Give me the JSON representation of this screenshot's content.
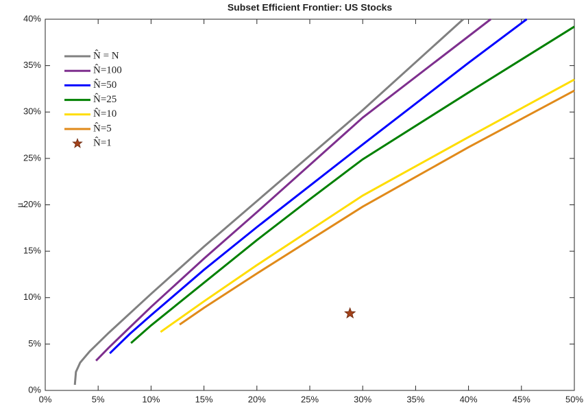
{
  "chart_data": {
    "type": "line",
    "title": "Subset Efficient Frontier:  US Stocks",
    "y_label": "μ",
    "xlim": [
      0,
      50
    ],
    "ylim": [
      0,
      40
    ],
    "xticks": [
      {
        "value": 0,
        "label": "0%"
      },
      {
        "value": 5,
        "label": "5%"
      },
      {
        "value": 10,
        "label": "10%"
      },
      {
        "value": 15,
        "label": "15%"
      },
      {
        "value": 20,
        "label": "20%"
      },
      {
        "value": 25,
        "label": "25%"
      },
      {
        "value": 30,
        "label": "30%"
      },
      {
        "value": 35,
        "label": "35%"
      },
      {
        "value": 40,
        "label": "40%"
      },
      {
        "value": 45,
        "label": "45%"
      },
      {
        "value": 50,
        "label": "50%"
      }
    ],
    "yticks": [
      {
        "value": 0,
        "label": "0%"
      },
      {
        "value": 5,
        "label": "5%"
      },
      {
        "value": 10,
        "label": "10%"
      },
      {
        "value": 15,
        "label": "15%"
      },
      {
        "value": 20,
        "label": "20%"
      },
      {
        "value": 25,
        "label": "25%"
      },
      {
        "value": 30,
        "label": "30%"
      },
      {
        "value": 35,
        "label": "35%"
      },
      {
        "value": 40,
        "label": "40%"
      }
    ],
    "grid": false,
    "legend": "upper-left",
    "series": [
      {
        "name": "N̂ = N",
        "color": "#808080",
        "x": [
          2.8,
          2.9,
          3.3,
          4.2,
          6,
          10,
          15,
          20,
          30,
          39.5
        ],
        "values": [
          0.6,
          2.0,
          3.0,
          4.2,
          6.2,
          10.4,
          15.5,
          20.4,
          30.2,
          40
        ]
      },
      {
        "name": "N̂=100",
        "color": "#7e2f8e",
        "x": [
          4.8,
          6,
          8,
          10,
          15,
          20,
          30,
          42.1
        ],
        "values": [
          3.2,
          4.6,
          6.8,
          9,
          14.2,
          19.2,
          29.4,
          40
        ]
      },
      {
        "name": "N̂=50",
        "color": "#0000ff",
        "x": [
          6.1,
          8,
          10,
          15,
          20,
          30,
          40,
          45.5
        ],
        "values": [
          4.0,
          6.1,
          8.1,
          13,
          17.6,
          26.5,
          35.3,
          40
        ]
      },
      {
        "name": "N̂=25",
        "color": "#008000",
        "x": [
          8.1,
          10,
          15,
          20,
          25,
          30,
          40,
          50
        ],
        "values": [
          5.1,
          7,
          11.6,
          16.2,
          20.6,
          24.9,
          32.1,
          39.2
        ]
      },
      {
        "name": "N̂=10",
        "color": "#ffdd00",
        "x": [
          10.9,
          15,
          20,
          30,
          40,
          50
        ],
        "values": [
          6.3,
          9.6,
          13.5,
          21,
          27.3,
          33.5
        ]
      },
      {
        "name": "N̂=5",
        "color": "#e08a1a",
        "x": [
          12.7,
          15,
          20,
          30,
          40,
          50
        ],
        "values": [
          7.1,
          8.9,
          12.6,
          19.8,
          26.2,
          32.3
        ]
      },
      {
        "name": "N̂=1",
        "color": "#a3421a",
        "marker": "star",
        "x": [
          28.8
        ],
        "values": [
          8.3
        ]
      }
    ]
  }
}
